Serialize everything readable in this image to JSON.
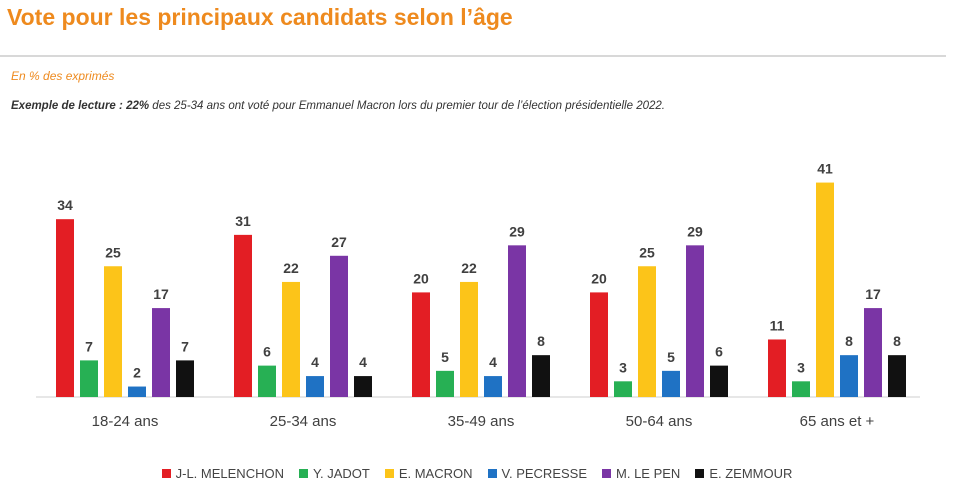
{
  "header": {
    "title": "Vote pour les principaux candidats selon l’âge",
    "unit_note": "En % des exprimés",
    "reading_label": "Exemple de lecture :",
    "reading_value": "22%",
    "reading_text": "des 25-34 ans ont voté pour Emmanuel Macron lors du premier tour de l’élection présidentielle 2022."
  },
  "chart_data": {
    "type": "bar",
    "title": "Vote pour les principaux candidats selon l’âge",
    "ylabel": "",
    "xlabel": "",
    "ylim": [
      0,
      45
    ],
    "grid": false,
    "legend_position": "bottom",
    "categories": [
      "18-24 ans",
      "25-34 ans",
      "35-49 ans",
      "50-64 ans",
      "65 ans et +"
    ],
    "series": [
      {
        "name": "J-L. MELENCHON",
        "color": "#e31e24",
        "values": [
          34,
          31,
          20,
          20,
          11
        ]
      },
      {
        "name": "Y. JADOT",
        "color": "#27b054",
        "values": [
          7,
          6,
          5,
          3,
          3
        ]
      },
      {
        "name": "E. MACRON",
        "color": "#fcc419",
        "values": [
          25,
          22,
          22,
          25,
          41
        ]
      },
      {
        "name": "V. PECRESSE",
        "color": "#1f72c4",
        "values": [
          2,
          4,
          4,
          5,
          8
        ]
      },
      {
        "name": "M. LE PEN",
        "color": "#7a35a5",
        "values": [
          17,
          27,
          29,
          29,
          17
        ]
      },
      {
        "name": "E. ZEMMOUR",
        "color": "#111111",
        "values": [
          7,
          4,
          8,
          6,
          8
        ]
      }
    ]
  }
}
